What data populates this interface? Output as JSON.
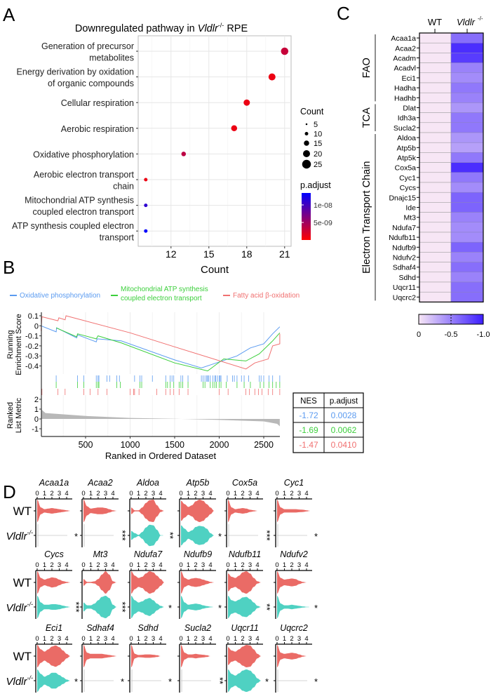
{
  "panel_letters": [
    "A",
    "B",
    "C",
    "D"
  ],
  "chart_data": [
    {
      "type": "scatter",
      "panel": "A",
      "title": {
        "prefix": "Downregulated pathway in ",
        "gene": "Vldlr",
        "sup": "-/-",
        "suffix": " RPE"
      },
      "xlabel": "Count",
      "xlim": [
        9.4,
        21.6
      ],
      "xticks": [
        "12",
        "15",
        "18",
        "21"
      ],
      "categories": [
        [
          "Generation of precursor",
          "metabolites"
        ],
        [
          "Energy derivation by oxidation",
          "of organic compounds"
        ],
        [
          "Cellular respiration"
        ],
        [
          "Aerobic respiration"
        ],
        [
          "Oxidative phosphorylation"
        ],
        [
          "Aerobic electron transport",
          "chain"
        ],
        [
          "Mitochondrial ATP synthesis",
          "coupled electron transport"
        ],
        [
          "ATP synthesis coupled electron",
          "transport"
        ]
      ],
      "count": [
        21,
        20,
        18,
        17,
        13,
        10,
        10,
        10
      ],
      "p_adjust": [
        3e-09,
        1e-09,
        1e-09,
        1e-09,
        3.5e-09,
        1e-09,
        1.1e-08,
        1.33e-08
      ],
      "legend": {
        "size_title": "Count",
        "size_labels": [
          "5",
          "10",
          "15",
          "20",
          "25"
        ],
        "size_values": [
          5,
          10,
          15,
          20,
          25
        ],
        "color_title": "p.adjust",
        "color_labels": [
          "1e-08",
          "5e-09"
        ],
        "color_values": [
          1e-08,
          5e-09
        ],
        "color_range": [
          0,
          1.34e-08
        ],
        "color_low": "#ff0000",
        "color_high": "#0000ff"
      }
    },
    {
      "type": "line",
      "panel": "B",
      "xlabel": "Ranked in Ordered Dataset",
      "ylabel_es": [
        "Running",
        "Enrichment Score"
      ],
      "ylabel_rank": [
        "Ranked",
        "List Metric"
      ],
      "xlim": [
        0,
        2680
      ],
      "xticks": [
        "500",
        "1000",
        "1500",
        "2000",
        "2500"
      ],
      "es_yticks": [
        "0.1",
        "0",
        "-0.1",
        "-0.2",
        "-0.3",
        "-0.4"
      ],
      "rank_yticks": [
        "2",
        "1",
        "0",
        "-1"
      ],
      "series": [
        {
          "name": "Oxidative phosphorylation",
          "color": "#5b9bf0",
          "nes": "-1.72",
          "p_adjust": "0.0028",
          "es": [
            [
              0,
              0
            ],
            [
              170,
              -0.06
            ],
            [
              175,
              -0.02
            ],
            [
              400,
              -0.12
            ],
            [
              410,
              -0.09
            ],
            [
              620,
              -0.16
            ],
            [
              630,
              -0.13
            ],
            [
              900,
              -0.15
            ],
            [
              1500,
              -0.34
            ],
            [
              1800,
              -0.42
            ],
            [
              2000,
              -0.36
            ],
            [
              2200,
              -0.3
            ],
            [
              2350,
              -0.22
            ],
            [
              2500,
              -0.18
            ],
            [
              2600,
              -0.08
            ],
            [
              2680,
              -0.01
            ]
          ],
          "hits": [
            170,
            410,
            480,
            620,
            640,
            650,
            740,
            770,
            850,
            880,
            1050,
            1110,
            1130,
            1250,
            1400,
            1450,
            1470,
            1490,
            1570,
            1590,
            1650,
            1800,
            1820,
            1840,
            1860,
            1870,
            1880,
            1900,
            1930,
            1950,
            1960,
            1980,
            2000,
            2010,
            2020,
            2090,
            2150,
            2170,
            2200,
            2250,
            2280,
            2330,
            2450,
            2470,
            2500,
            2560,
            2600,
            2680
          ]
        },
        {
          "name": "Mitochondrial ATP synthesis coupled electron transport",
          "name_lines": [
            "Mitochondrial ATP synthesis",
            "coupled electron transport"
          ],
          "color": "#3ccf3c",
          "nes": "-1.69",
          "p_adjust": "0.0062",
          "es": [
            [
              170,
              -0.02
            ],
            [
              400,
              -0.11
            ],
            [
              410,
              -0.08
            ],
            [
              620,
              -0.13
            ],
            [
              640,
              -0.1
            ],
            [
              900,
              -0.17
            ],
            [
              1500,
              -0.37
            ],
            [
              1870,
              -0.45
            ],
            [
              2050,
              -0.33
            ],
            [
              2300,
              -0.35
            ],
            [
              2450,
              -0.28
            ],
            [
              2600,
              -0.15
            ],
            [
              2680,
              -0.07
            ]
          ],
          "hits": [
            170,
            410,
            480,
            620,
            640,
            650,
            850,
            890,
            1110,
            1130,
            1400,
            1420,
            1450,
            1490,
            1550,
            1570,
            1590,
            1650,
            1820,
            1840,
            1900,
            1930,
            1950,
            1970,
            2000,
            2020,
            2080,
            2200,
            2280,
            2350,
            2460,
            2500,
            2560,
            2600,
            2640,
            2680
          ]
        },
        {
          "name": "Fatty acid β-oxidation",
          "color": "#f07070",
          "nes": "-1.47",
          "p_adjust": "0.0410",
          "es": [
            [
              0,
              -0.05
            ],
            [
              10,
              0.09
            ],
            [
              190,
              0.05
            ],
            [
              200,
              0.08
            ],
            [
              270,
              0.06
            ],
            [
              280,
              0.1
            ],
            [
              1000,
              -0.07
            ],
            [
              1500,
              -0.21
            ],
            [
              2300,
              -0.43
            ],
            [
              2400,
              -0.37
            ],
            [
              2550,
              -0.33
            ],
            [
              2600,
              -0.2
            ],
            [
              2680,
              -0.18
            ],
            [
              2680,
              -0.08
            ]
          ],
          "hits": [
            10,
            190,
            270,
            480,
            550,
            640,
            740,
            1000,
            1040,
            1050,
            1100,
            1300,
            1400,
            1450,
            1490,
            1550,
            1650,
            2000,
            2100,
            2300,
            2340,
            2400,
            2440,
            2480,
            2550,
            2600,
            2680
          ]
        }
      ],
      "ranked_metric": [
        [
          0,
          1.0
        ],
        [
          50,
          0.6
        ],
        [
          500,
          0.3
        ],
        [
          1000,
          0.1
        ],
        [
          1500,
          0.02
        ],
        [
          2000,
          -0.1
        ],
        [
          2500,
          -0.25
        ],
        [
          2650,
          -0.5
        ],
        [
          2680,
          -0.75
        ]
      ],
      "table": {
        "headers": [
          "NES",
          "p.adjust"
        ]
      }
    },
    {
      "type": "heatmap",
      "panel": "C",
      "columns": [
        "WT",
        "Vldlr"
      ],
      "column_sup": "-/-",
      "groups": [
        {
          "name": "FAO",
          "rows": [
            "Acaa1a",
            "Acaa2",
            "Acadm",
            "Acadvl",
            "Eci1",
            "Hadha",
            "Hadhb"
          ],
          "values": [
            -0.6,
            -0.92,
            -0.85,
            -0.5,
            -0.45,
            -0.55,
            -0.5
          ]
        },
        {
          "name": "TCA",
          "rows": [
            "Dlat",
            "Idh3a",
            "Sucla2"
          ],
          "values": [
            -0.4,
            -0.55,
            -0.55
          ]
        },
        {
          "name": "Electron Transport Chain",
          "rows": [
            "Aldoa",
            "Atp5b",
            "Atp5k",
            "Cox5a",
            "Cyc1",
            "Cycs",
            "Dnajc15",
            "Ide",
            "Mt3",
            "Ndufa7",
            "Ndufb11",
            "Ndufb9",
            "Ndufv2",
            "Sdhaf4",
            "Sdhd",
            "Uqcr11",
            "Uqcrc2"
          ],
          "values": [
            -0.4,
            -0.35,
            -0.55,
            -0.92,
            -0.55,
            -0.45,
            -0.65,
            -0.65,
            -0.5,
            -0.45,
            -0.45,
            -0.65,
            -0.5,
            -0.6,
            -0.5,
            -0.6,
            -0.6
          ]
        }
      ],
      "colorbar": {
        "labels": [
          "0",
          "-0.5",
          "-1.0"
        ],
        "low_color": "#f7e6f5",
        "high_color": "#3c1eff"
      }
    },
    {
      "type": "violin",
      "panel": "D",
      "row_labels": {
        "wt": "WT",
        "ko": "Vldlr",
        "ko_sup": "-/-"
      },
      "xticks": [
        "0",
        "1",
        "2",
        "3",
        "4"
      ],
      "wt_color": "#ea6b66",
      "ko_color": "#4fd1c2",
      "genes": [
        {
          "name": "Acaa1a",
          "sig": "*",
          "wt": [
            1,
            0.3,
            0.15,
            0.2,
            0.25,
            0.2,
            0.15,
            0.1,
            0.05,
            0
          ],
          "ko": null
        },
        {
          "name": "Acaa2",
          "sig": "***",
          "wt": [
            1,
            0.4,
            0.2,
            0.25,
            0.3,
            0.3,
            0.25,
            0.15,
            0.05,
            0
          ],
          "ko": null
        },
        {
          "name": "Aldoa",
          "sig": "**",
          "wt": [
            0.3,
            0.05,
            0.05,
            0.3,
            0.7,
            0.95,
            1,
            0.5,
            0.1,
            0
          ],
          "ko": [
            0.4,
            0.2,
            0.05,
            0.3,
            0.7,
            0.95,
            0.9,
            0.5,
            0.02,
            0
          ]
        },
        {
          "name": "Atp5b",
          "sig": "*",
          "wt": [
            0.9,
            0.6,
            0.35,
            0.5,
            0.85,
            1,
            0.9,
            0.6,
            0.3,
            0
          ],
          "ko": [
            0.9,
            0.6,
            0.3,
            0.45,
            0.75,
            0.85,
            0.8,
            0.6,
            0.2,
            0
          ]
        },
        {
          "name": "Cox5a",
          "sig": "***",
          "wt": [
            1,
            0.3,
            0.15,
            0.2,
            0.25,
            0.2,
            0.1,
            0.05,
            0,
            0
          ],
          "ko": null
        },
        {
          "name": "Cyc1",
          "sig": "*",
          "wt": [
            1,
            0.3,
            0.15,
            0.15,
            0.15,
            0.15,
            0.12,
            0.1,
            0.05,
            0
          ],
          "ko": null
        },
        {
          "name": "Cycs",
          "sig": "***",
          "wt": [
            1,
            0.4,
            0.25,
            0.35,
            0.45,
            0.4,
            0.25,
            0.12,
            0.05,
            0
          ],
          "ko": [
            1,
            0.4,
            0.2,
            0.2,
            0.25,
            0.25,
            0.2,
            0.12,
            0.05,
            0
          ]
        },
        {
          "name": "Mt3",
          "sig": "***",
          "wt": [
            0.3,
            0.05,
            0.05,
            0.1,
            0.3,
            0.7,
            1,
            0.7,
            0.1,
            0
          ],
          "ko": [
            0.4,
            0.15,
            0.15,
            0.3,
            0.6,
            0.9,
            1,
            0.8,
            0.2,
            0
          ]
        },
        {
          "name": "Ndufa7",
          "sig": "*",
          "wt": [
            1,
            0.6,
            0.4,
            0.5,
            0.8,
            1,
            0.9,
            0.6,
            0.3,
            0
          ],
          "ko": [
            1,
            0.6,
            0.4,
            0.5,
            0.7,
            0.8,
            0.6,
            0.3,
            0.1,
            0
          ]
        },
        {
          "name": "Ndufb9",
          "sig": "*",
          "wt": [
            1,
            0.4,
            0.25,
            0.35,
            0.4,
            0.35,
            0.25,
            0.15,
            0.05,
            0
          ],
          "ko": [
            1,
            0.4,
            0.2,
            0.25,
            0.3,
            0.25,
            0.15,
            0.08,
            0.03,
            0
          ]
        },
        {
          "name": "Ndufb11",
          "sig": "**",
          "wt": [
            0.8,
            0.5,
            0.4,
            0.6,
            0.9,
            1,
            0.8,
            0.4,
            0.1,
            0
          ],
          "ko": [
            1,
            0.6,
            0.5,
            0.65,
            0.85,
            0.9,
            0.7,
            0.4,
            0.1,
            0
          ]
        },
        {
          "name": "Ndufv2",
          "sig": "*",
          "wt": [
            1,
            0.4,
            0.25,
            0.3,
            0.35,
            0.3,
            0.15,
            0.05,
            0,
            0
          ],
          "ko": [
            1,
            0.3,
            0.15,
            0.15,
            0.2,
            0.15,
            0.1,
            0.05,
            0.02,
            0
          ]
        },
        {
          "name": "Eci1",
          "sig": "*",
          "wt": [
            1,
            0.6,
            0.4,
            0.6,
            0.85,
            0.95,
            0.8,
            0.5,
            0.2,
            0
          ],
          "ko": [
            1,
            0.6,
            0.35,
            0.5,
            0.7,
            0.7,
            0.5,
            0.3,
            0.1,
            0
          ]
        },
        {
          "name": "Sdhaf4",
          "sig": "*",
          "wt": [
            1,
            0.3,
            0.2,
            0.2,
            0.2,
            0.2,
            0.15,
            0.1,
            0.05,
            0
          ],
          "ko": null
        },
        {
          "name": "Sdhd",
          "sig": "*",
          "wt": [
            1,
            0.2,
            0.1,
            0.12,
            0.15,
            0.15,
            0.12,
            0.08,
            0,
            0
          ],
          "ko": null
        },
        {
          "name": "Sucla2",
          "sig": "**",
          "wt": [
            1,
            0.3,
            0.15,
            0.15,
            0.2,
            0.15,
            0.12,
            0.08,
            0,
            0
          ],
          "ko": null
        },
        {
          "name": "Uqcr11",
          "sig": "*",
          "wt": [
            0.8,
            0.5,
            0.4,
            0.6,
            0.85,
            1,
            0.95,
            0.6,
            0.2,
            0
          ],
          "ko": [
            1,
            0.6,
            0.45,
            0.65,
            0.9,
            1,
            0.9,
            0.6,
            0.2,
            0
          ]
        },
        {
          "name": "Uqcrc2",
          "sig": "*",
          "wt": [
            1,
            0.3,
            0.2,
            0.25,
            0.3,
            0.25,
            0.15,
            0.05,
            0,
            0
          ],
          "ko": null
        }
      ]
    }
  ]
}
